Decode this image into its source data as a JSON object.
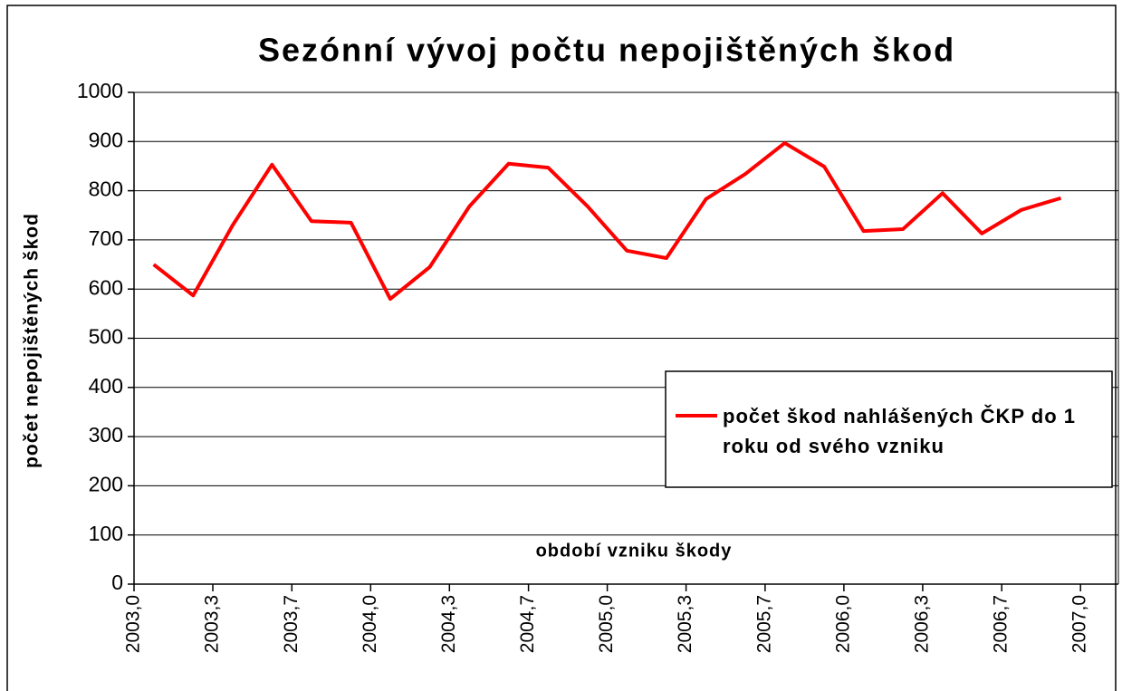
{
  "chart_data": {
    "type": "line",
    "title": "Sezónní vývoj počtu nepojištěných škod",
    "y_label": "počet nepojištěných škod",
    "x_label": "období vzniku škody",
    "x": [
      2003.083,
      2003.25,
      2003.417,
      2003.583,
      2003.75,
      2003.917,
      2004.083,
      2004.25,
      2004.417,
      2004.583,
      2004.75,
      2004.917,
      2005.083,
      2005.25,
      2005.417,
      2005.583,
      2005.75,
      2005.917,
      2006.083,
      2006.25,
      2006.417,
      2006.583,
      2006.75,
      2006.917
    ],
    "series": [
      {
        "name": "počet škod nahlášených ČKP do 1 roku od svého vzniku",
        "color": "#ff0000",
        "values": [
          650,
          587,
          730,
          853,
          738,
          735,
          580,
          645,
          768,
          855,
          847,
          768,
          678,
          663,
          783,
          834,
          897,
          849,
          718,
          722,
          795,
          713,
          761,
          785
        ]
      }
    ],
    "xlim": [
      2003,
      2007.16
    ],
    "xticks": [
      {
        "value": 2003,
        "label": "2003,0"
      },
      {
        "value": 2003.333,
        "label": "2003,3"
      },
      {
        "value": 2003.667,
        "label": "2003,7"
      },
      {
        "value": 2004,
        "label": "2004,0"
      },
      {
        "value": 2004.333,
        "label": "2004,3"
      },
      {
        "value": 2004.667,
        "label": "2004,7"
      },
      {
        "value": 2005,
        "label": "2005,0"
      },
      {
        "value": 2005.333,
        "label": "2005,3"
      },
      {
        "value": 2005.667,
        "label": "2005,7"
      },
      {
        "value": 2006,
        "label": "2006,0"
      },
      {
        "value": 2006.333,
        "label": "2006,3"
      },
      {
        "value": 2006.667,
        "label": "2006,7"
      },
      {
        "value": 2007,
        "label": "2007,0"
      }
    ],
    "ylim": [
      0,
      1000
    ],
    "yticks": [
      0,
      100,
      200,
      300,
      400,
      500,
      600,
      700,
      800,
      900,
      1000
    ],
    "grid": true,
    "legend": "right"
  }
}
